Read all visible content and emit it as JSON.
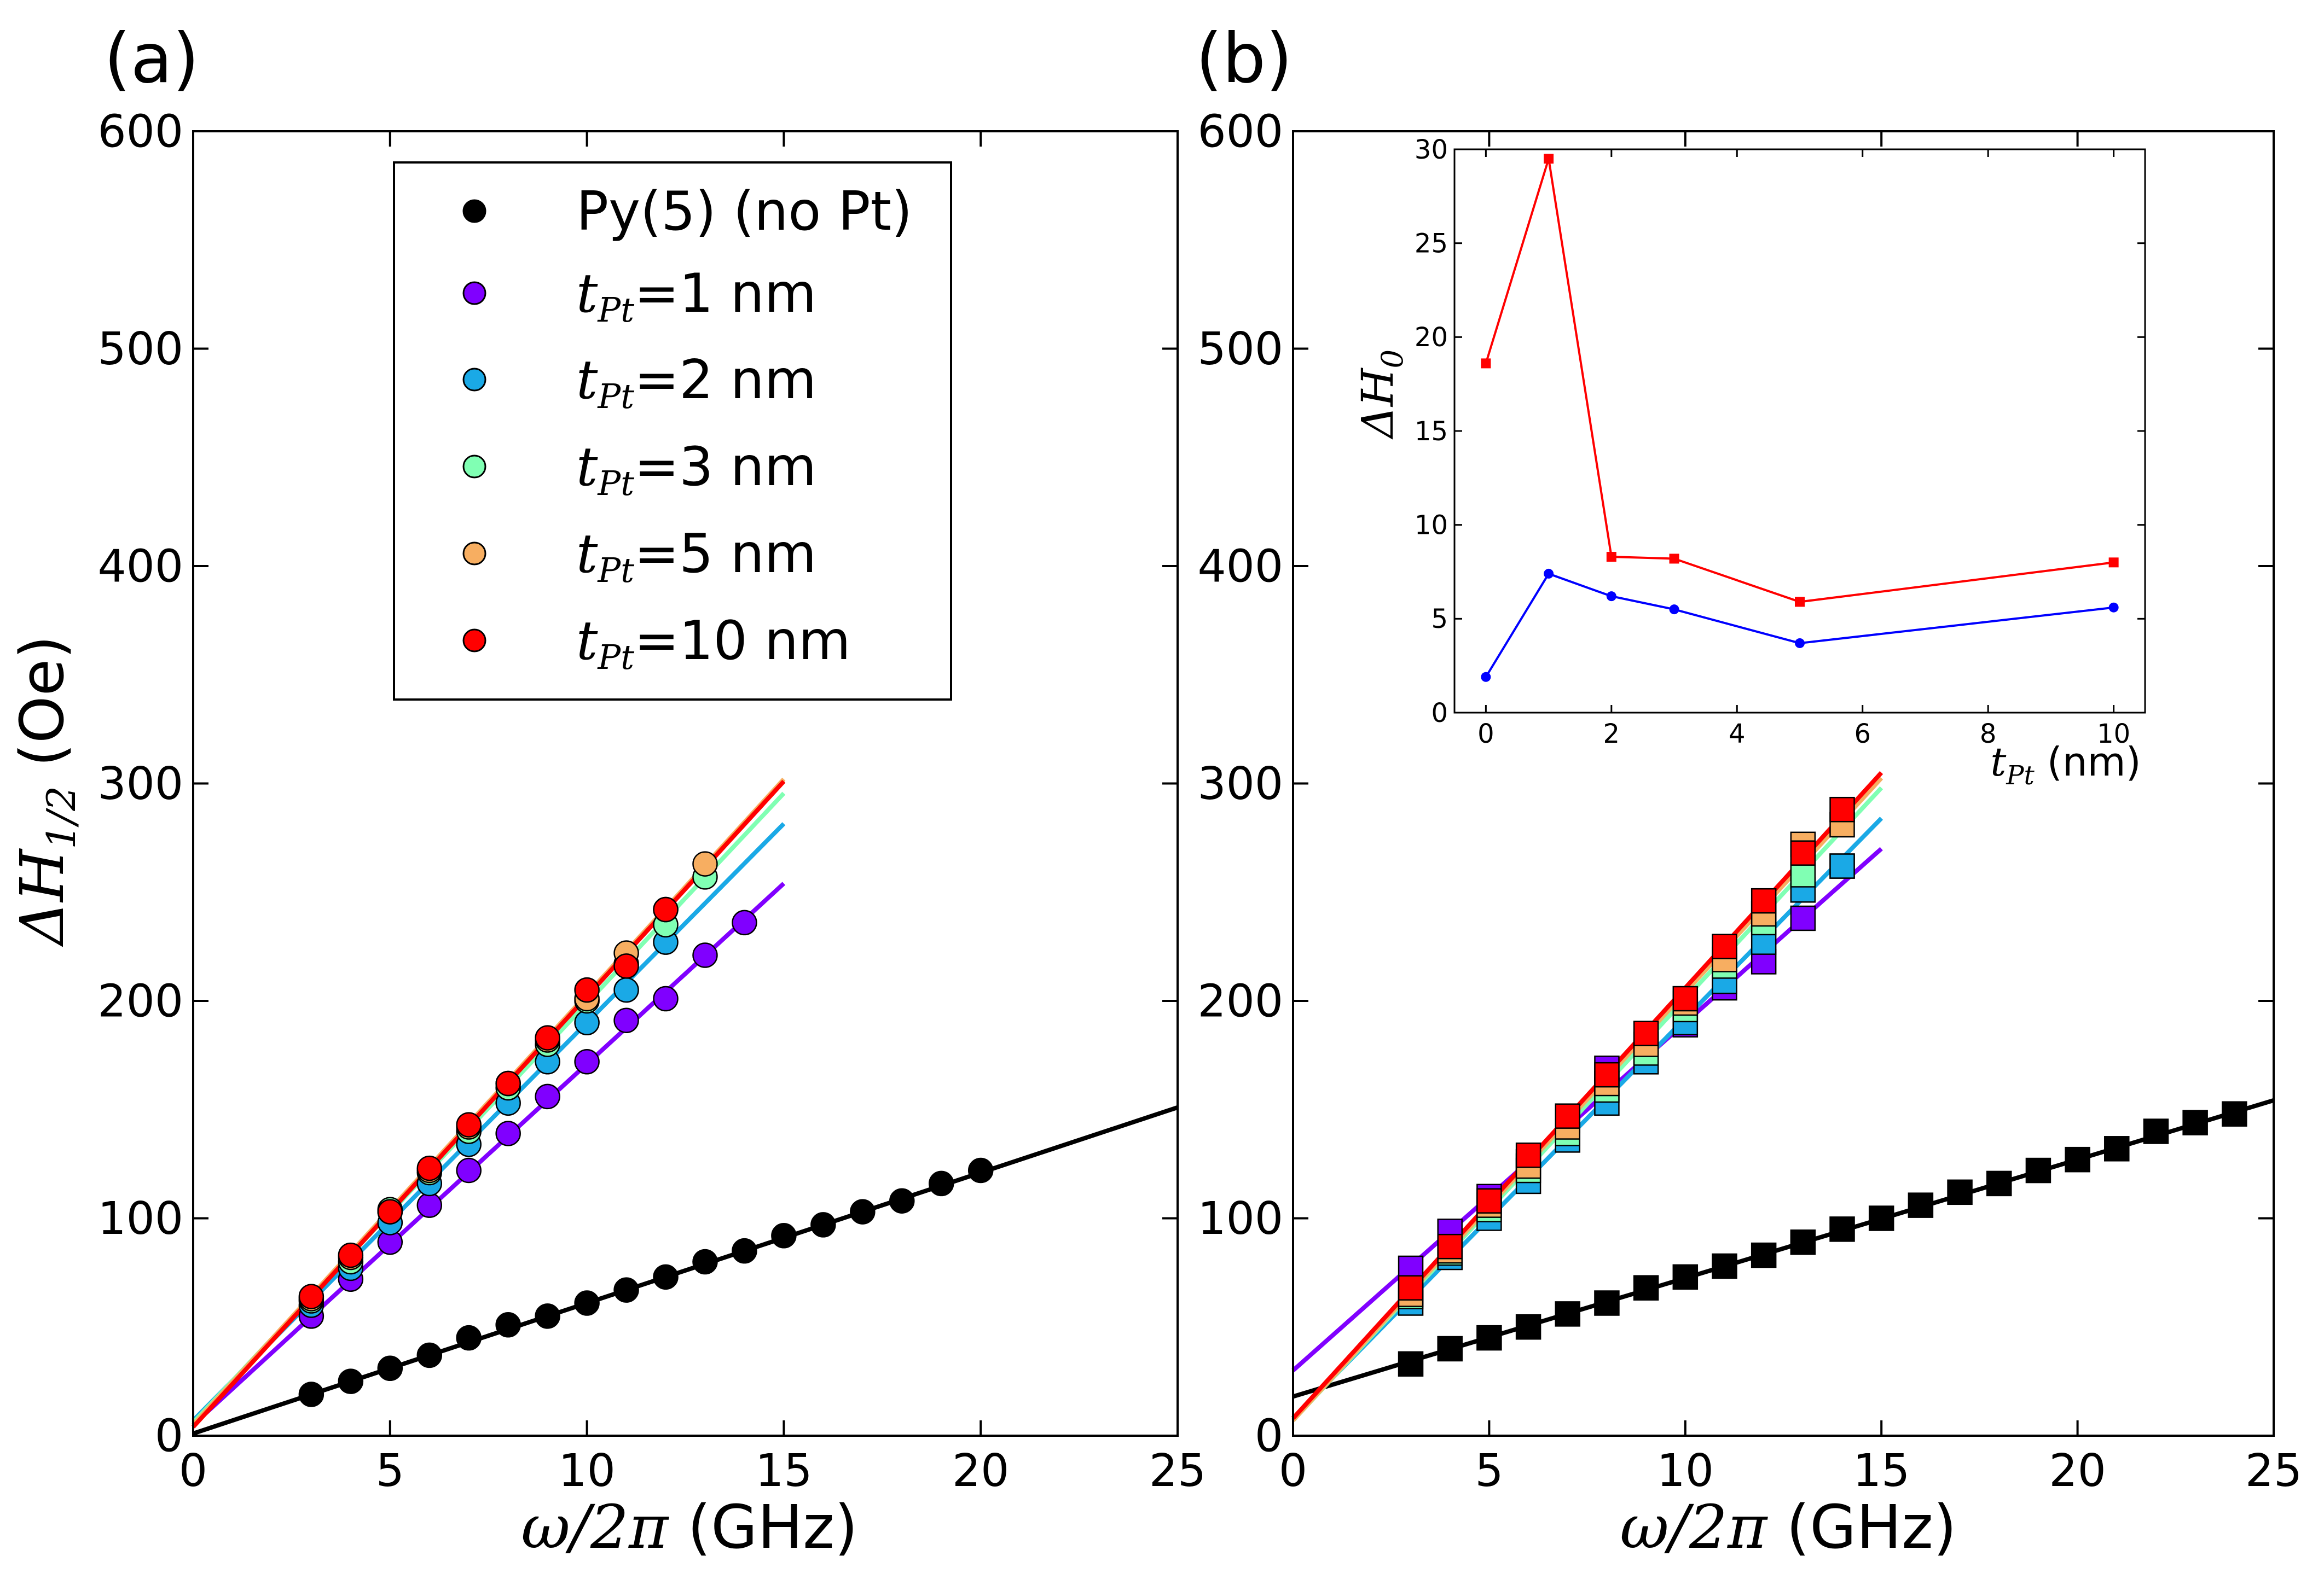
{
  "figure": {
    "panel_a_label": "(a)",
    "panel_b_label": "(b)"
  },
  "legend": {
    "entries": [
      {
        "symbol": "",
        "label": "Py(5) (no Pt)",
        "color": "#000000"
      },
      {
        "symbol": "t",
        "sub": "Pt",
        "label": "=1 nm",
        "color": "#8000ff"
      },
      {
        "symbol": "t",
        "sub": "Pt",
        "label": "=2 nm",
        "color": "#1aa9e6"
      },
      {
        "symbol": "t",
        "sub": "Pt",
        "label": "=3 nm",
        "color": "#80ffb3"
      },
      {
        "symbol": "t",
        "sub": "Pt",
        "label": "=5 nm",
        "color": "#f7ae61"
      },
      {
        "symbol": "t",
        "sub": "Pt",
        "label": "=10 nm",
        "color": "#ff0000"
      }
    ]
  },
  "chart_data": [
    {
      "panel": "(a)",
      "type": "scatter",
      "marker": "circle",
      "xlabel_sym": "ω/2π",
      "xlabel_unit": " (GHz)",
      "ylabel_sym": "ΔH",
      "ylabel_sub": "1/2",
      "ylabel_unit": " (Oe)",
      "xlim": [
        0,
        25
      ],
      "ylim": [
        0,
        600
      ],
      "xticks": [
        0,
        5,
        10,
        15,
        20,
        25
      ],
      "yticks": [
        0,
        100,
        200,
        300,
        400,
        500,
        600
      ],
      "series": [
        {
          "name": "Py(5) (no Pt)",
          "color": "#000000",
          "x": [
            3,
            4,
            5,
            6,
            7,
            8,
            9,
            10,
            11,
            12,
            13,
            14,
            15,
            16,
            17,
            18,
            19,
            20
          ],
          "y": [
            19,
            25,
            31,
            37,
            45,
            51,
            55,
            61,
            67,
            73,
            80,
            85,
            92,
            97,
            103,
            108,
            116,
            122
          ],
          "fit": {
            "slope": 6.0,
            "intercept": 1,
            "xmax": 25
          }
        },
        {
          "name": "t_Pt=1 nm",
          "color": "#8000ff",
          "x": [
            3,
            4,
            5,
            6,
            7,
            8,
            9,
            10,
            11,
            12,
            13,
            14
          ],
          "y": [
            55,
            72,
            89,
            106,
            122,
            139,
            156,
            172,
            191,
            201,
            221,
            236
          ],
          "fit": {
            "slope": 16.6,
            "intercept": 5,
            "xmax": 15
          }
        },
        {
          "name": "t_Pt=2 nm",
          "color": "#1aa9e6",
          "x": [
            3,
            4,
            5,
            6,
            7,
            8,
            9,
            10,
            11,
            12
          ],
          "y": [
            60,
            77,
            98,
            116,
            134,
            153,
            172,
            190,
            205,
            227
          ],
          "fit": {
            "slope": 18.3,
            "intercept": 7,
            "xmax": 15
          }
        },
        {
          "name": "t_Pt=3 nm",
          "color": "#80ffb3",
          "x": [
            3,
            4,
            5,
            6,
            7,
            8,
            9,
            10,
            11,
            12,
            13
          ],
          "y": [
            62,
            80,
            104,
            121,
            140,
            160,
            180,
            200,
            217,
            235,
            257
          ],
          "fit": {
            "slope": 19.3,
            "intercept": 6,
            "xmax": 15
          }
        },
        {
          "name": "t_Pt=5 nm",
          "color": "#f7ae61",
          "x": [
            3,
            4,
            5,
            6,
            7,
            8,
            9,
            10,
            11,
            12,
            13
          ],
          "y": [
            63,
            82,
            103,
            122,
            142,
            162,
            182,
            201,
            222,
            242,
            263
          ],
          "fit": {
            "slope": 19.8,
            "intercept": 5,
            "xmax": 15
          }
        },
        {
          "name": "t_Pt=10 nm",
          "color": "#ff0000",
          "x": [
            3,
            4,
            5,
            6,
            7,
            8,
            9,
            10,
            11,
            12
          ],
          "y": [
            64,
            83,
            103,
            123,
            143,
            162,
            183,
            205,
            216,
            242
          ],
          "fit": {
            "slope": 19.8,
            "intercept": 4,
            "xmax": 15
          }
        }
      ]
    },
    {
      "panel": "(b)",
      "type": "scatter",
      "marker": "square",
      "xlabel_sym": "ω/2π",
      "xlabel_unit": " (GHz)",
      "xlim": [
        0,
        25
      ],
      "ylim": [
        0,
        600
      ],
      "xticks": [
        0,
        5,
        10,
        15,
        20,
        25
      ],
      "yticks": [
        0,
        100,
        200,
        300,
        400,
        500,
        600
      ],
      "series": [
        {
          "name": "Py(5) (no Pt)",
          "color": "#000000",
          "x": [
            3,
            4,
            5,
            6,
            7,
            8,
            9,
            10,
            11,
            12,
            13,
            14,
            15,
            16,
            17,
            18,
            19,
            20,
            21,
            22,
            23,
            24
          ],
          "y": [
            33,
            40,
            45,
            50,
            56,
            61,
            68,
            73,
            78,
            83,
            89,
            95,
            100,
            106,
            112,
            116,
            122,
            127,
            132,
            140,
            144,
            148
          ],
          "fit": {
            "slope": 5.45,
            "intercept": 18,
            "xmax": 25
          }
        },
        {
          "name": "t_Pt=1 nm",
          "color": "#8000ff",
          "x": [
            3,
            4,
            5,
            6,
            7,
            8,
            9,
            10,
            11,
            12,
            13,
            14
          ],
          "y": [
            77,
            94,
            110,
            126,
            145,
            169,
            172,
            189,
            206,
            218,
            238,
            262
          ],
          "fit": {
            "slope": 16.0,
            "intercept": 30,
            "xmax": 15
          }
        },
        {
          "name": "t_Pt=2 nm",
          "color": "#1aa9e6",
          "x": [
            3,
            4,
            5,
            6,
            7,
            8,
            9,
            10,
            11,
            12,
            13,
            14
          ],
          "y": [
            61,
            82,
            100,
            117,
            136,
            153,
            172,
            190,
            209,
            227,
            251,
            262
          ],
          "fit": {
            "slope": 18.4,
            "intercept": 8,
            "xmax": 15
          }
        },
        {
          "name": "t_Pt=3 nm",
          "color": "#80ffb3",
          "x": [
            3,
            4,
            5,
            6,
            7,
            8,
            9,
            10,
            11,
            12,
            13
          ],
          "y": [
            64,
            84,
            104,
            122,
            139,
            159,
            176,
            196,
            216,
            236,
            258
          ],
          "fit": {
            "slope": 19.4,
            "intercept": 7,
            "xmax": 15
          }
        },
        {
          "name": "t_Pt=5 nm",
          "color": "#f7ae61",
          "x": [
            3,
            4,
            5,
            6,
            7,
            8,
            9,
            10,
            11,
            12,
            13,
            14
          ],
          "y": [
            65,
            85,
            106,
            124,
            142,
            162,
            180,
            199,
            219,
            240,
            272,
            281
          ],
          "fit": {
            "slope": 19.7,
            "intercept": 7,
            "xmax": 15
          }
        },
        {
          "name": "t_Pt=10 nm",
          "color": "#ff0000",
          "x": [
            3,
            4,
            5,
            6,
            7,
            8,
            9,
            10,
            11,
            12,
            13,
            14
          ],
          "y": [
            68,
            87,
            108,
            129,
            147,
            166,
            185,
            201,
            225,
            246,
            268,
            288
          ],
          "fit": {
            "slope": 19.8,
            "intercept": 8,
            "xmax": 15
          }
        }
      ]
    },
    {
      "panel": "(b) inset",
      "type": "line",
      "xlabel_sym": "t",
      "xlabel_sub": "Pt",
      "xlabel_unit": " (nm)",
      "ylabel_sym": "ΔH",
      "ylabel_sub": "0",
      "xlim": [
        -0.5,
        10.5
      ],
      "ylim": [
        0,
        30
      ],
      "xticks": [
        0,
        2,
        4,
        6,
        8,
        10
      ],
      "yticks": [
        0,
        5,
        10,
        15,
        20,
        25,
        30
      ],
      "series": [
        {
          "name": "red",
          "color": "#ff0000",
          "marker": "square",
          "x": [
            0,
            1,
            2,
            3,
            5,
            10
          ],
          "y": [
            18.6,
            29.5,
            8.3,
            8.2,
            5.9,
            8.0
          ]
        },
        {
          "name": "blue",
          "color": "#0000ff",
          "marker": "circle",
          "x": [
            0,
            1,
            2,
            3,
            5,
            10
          ],
          "y": [
            1.9,
            7.4,
            6.2,
            5.5,
            3.7,
            5.6
          ]
        }
      ]
    }
  ]
}
